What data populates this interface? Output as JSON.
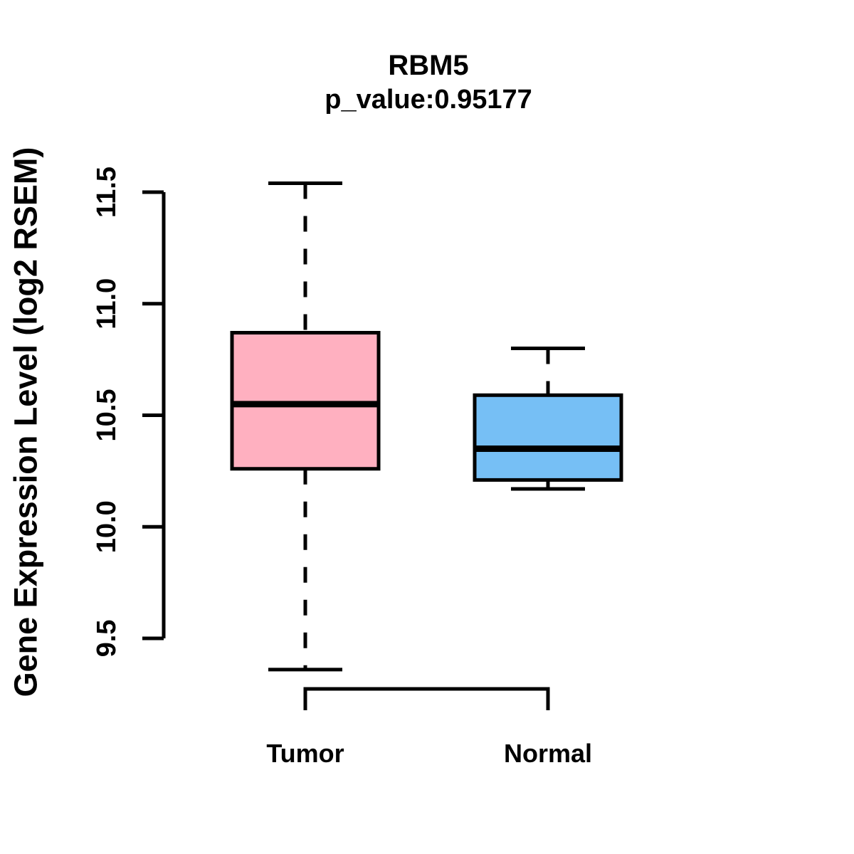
{
  "chart_data": {
    "type": "boxplot",
    "title": "RBM5",
    "subtitle": "p_value:0.95177",
    "ylabel": "Gene Expression Level (log2 RSEM)",
    "xlabel": "",
    "y_axis": {
      "range": [
        9.5,
        11.5
      ],
      "tick_values": [
        9.5,
        10.0,
        10.5,
        11.0,
        11.5
      ],
      "tick_labels": [
        "9.5",
        "10.0",
        "10.5",
        "11.0",
        "11.5"
      ],
      "label_rotation": "vertical"
    },
    "categories": [
      "Tumor",
      "Normal"
    ],
    "whisker_style": "dashed",
    "line_color": "#000000",
    "series": [
      {
        "name": "Tumor",
        "fill_color": "#FFB0C0",
        "stats": {
          "lower_whisker": 9.36,
          "q1": 10.26,
          "median": 10.55,
          "q3": 10.87,
          "upper_whisker": 11.54
        }
      },
      {
        "name": "Normal",
        "fill_color": "#76BFF5",
        "stats": {
          "lower_whisker": 10.17,
          "q1": 10.21,
          "median": 10.35,
          "q3": 10.59,
          "upper_whisker": 10.8
        }
      }
    ],
    "grid": "off",
    "legend": "none"
  }
}
